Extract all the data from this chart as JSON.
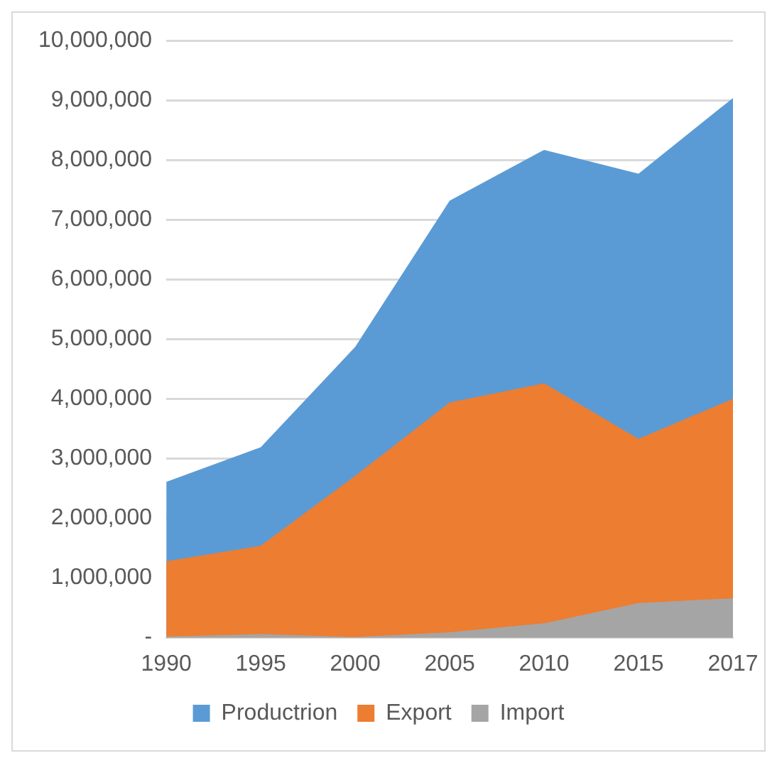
{
  "chart_data": {
    "type": "area",
    "categories": [
      "1990",
      "1995",
      "2000",
      "2005",
      "2010",
      "2015",
      "2017"
    ],
    "series": [
      {
        "name": "Productrion",
        "color": "#5b9bd5",
        "values": [
          2610000,
          3190000,
          4870000,
          7320000,
          8170000,
          7770000,
          9040000
        ]
      },
      {
        "name": "Export",
        "color": "#ed7d31",
        "values": [
          1280000,
          1540000,
          2710000,
          3940000,
          4260000,
          3330000,
          4000000
        ]
      },
      {
        "name": "Import",
        "color": "#a5a5a5",
        "values": [
          20000,
          60000,
          10000,
          90000,
          240000,
          580000,
          660000
        ]
      }
    ],
    "ylim": [
      0,
      10000000
    ],
    "yticks": [
      {
        "value": 0,
        "label": "-"
      },
      {
        "value": 1000000,
        "label": "1,000,000"
      },
      {
        "value": 2000000,
        "label": "2,000,000"
      },
      {
        "value": 3000000,
        "label": "3,000,000"
      },
      {
        "value": 4000000,
        "label": "4,000,000"
      },
      {
        "value": 5000000,
        "label": "5,000,000"
      },
      {
        "value": 6000000,
        "label": "6,000,000"
      },
      {
        "value": 7000000,
        "label": "7,000,000"
      },
      {
        "value": 8000000,
        "label": "8,000,000"
      },
      {
        "value": 9000000,
        "label": "9,000,000"
      },
      {
        "value": 10000000,
        "label": "10,000,000"
      }
    ],
    "grid": "y",
    "legend": "bottom"
  }
}
